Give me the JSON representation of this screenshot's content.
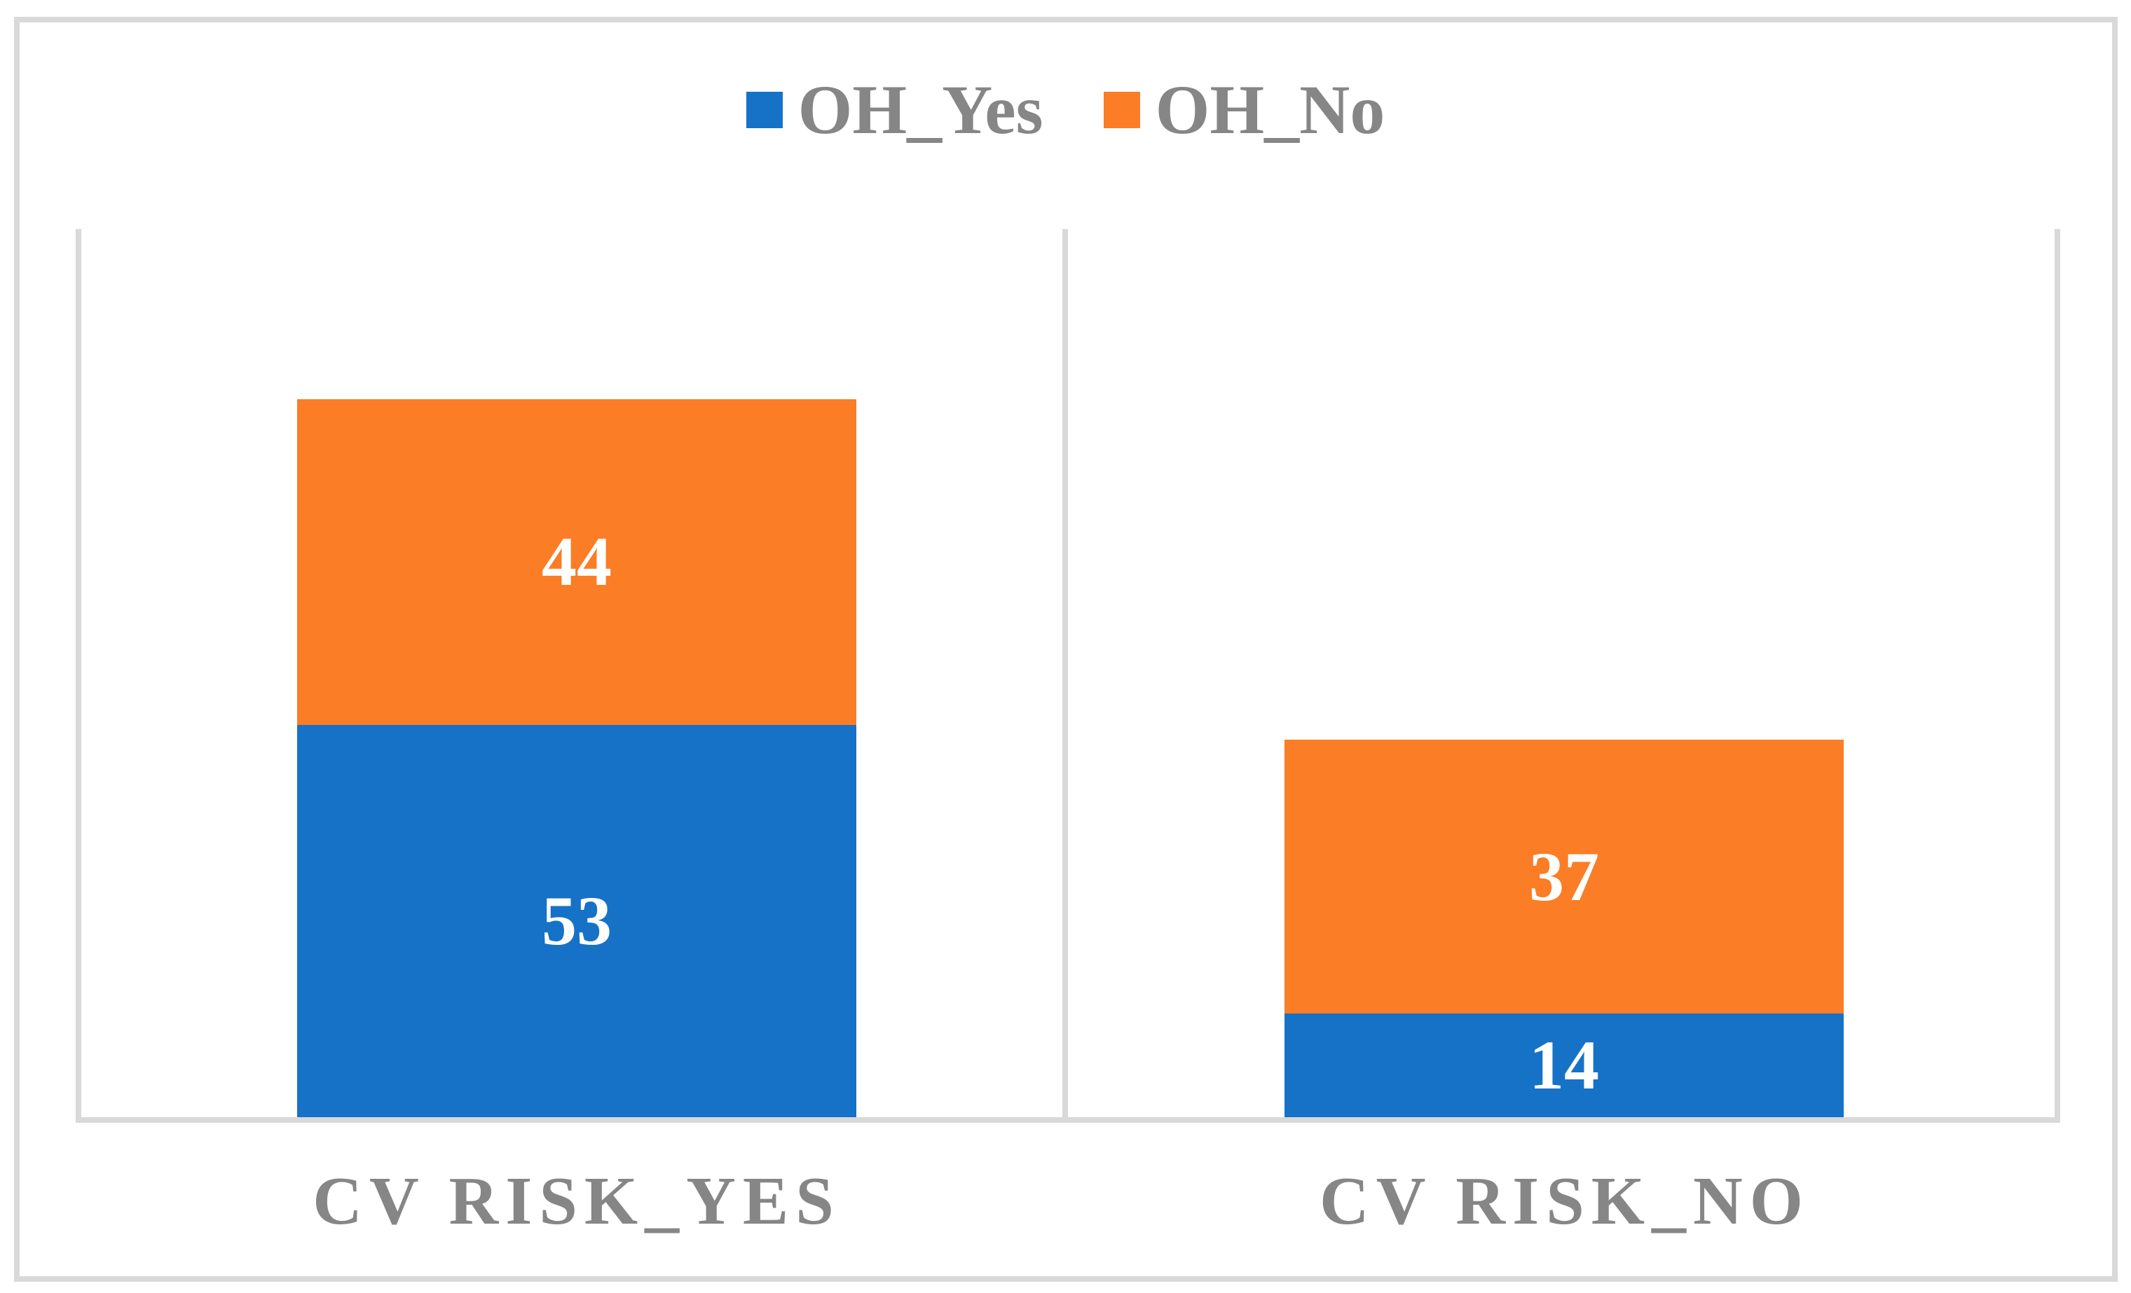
{
  "chart_data": {
    "type": "bar",
    "stacked": true,
    "categories": [
      "CV RISK_YES",
      "CV RISK_NO"
    ],
    "series": [
      {
        "name": "OH_Yes",
        "color": "#1672C6",
        "values": [
          53,
          14
        ]
      },
      {
        "name": "OH_No",
        "color": "#FB7D26",
        "values": [
          44,
          37
        ]
      }
    ],
    "title": "",
    "xlabel": "",
    "ylabel": "",
    "ylim": [
      0,
      120
    ],
    "grid": false,
    "legend_position": "top",
    "value_labels": "inside-center"
  },
  "colors": {
    "text_gray": "#868686",
    "line_gray": "#D9D9D9",
    "value_label": "#FFFFFF",
    "background": "#FFFFFF"
  }
}
